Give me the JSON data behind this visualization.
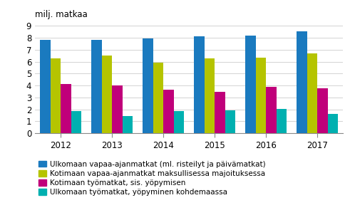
{
  "years": [
    "2012",
    "2013",
    "2014",
    "2015",
    "2016",
    "2017"
  ],
  "series": [
    {
      "label": "Ulkomaan vapaa-ajanmatkat (ml. risteilyt ja päivämatkat)",
      "color": "#1a7abf",
      "values": [
        7.8,
        7.8,
        7.95,
        8.1,
        8.2,
        8.55
      ]
    },
    {
      "label": "Kotimaan vapaa-ajanmatkat maksullisessa majoituksessa",
      "color": "#b5c400",
      "values": [
        6.3,
        6.5,
        5.9,
        6.3,
        6.35,
        6.7
      ]
    },
    {
      "label": "Kotimaan työmatkat, sis. yöpymisen",
      "color": "#c0007a",
      "values": [
        4.1,
        4.0,
        3.65,
        3.45,
        3.9,
        3.75
      ]
    },
    {
      "label": "Ulkomaan työmatkat, yöpyminen kohdemaassa",
      "color": "#00b0b0",
      "values": [
        1.85,
        1.45,
        1.85,
        1.9,
        2.05,
        1.65
      ]
    }
  ],
  "ylabel": "milj. matkaa",
  "ylim": [
    0,
    9
  ],
  "yticks": [
    0,
    1,
    2,
    3,
    4,
    5,
    6,
    7,
    8,
    9
  ],
  "background_color": "#ffffff",
  "grid_color": "#cccccc"
}
